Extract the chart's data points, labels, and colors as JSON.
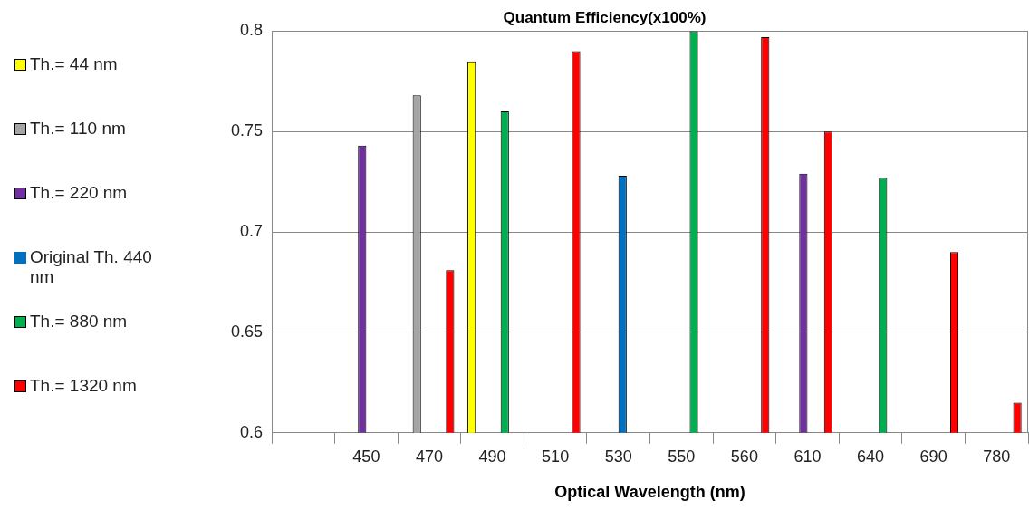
{
  "chart_data": {
    "type": "bar",
    "title": "Quantum Efficiency(x100%)",
    "xlabel": "Optical Wavelength (nm)",
    "categories": [
      null,
      "450",
      "470",
      "490",
      "510",
      "530",
      "550",
      "560",
      "610",
      "640",
      "690",
      "780"
    ],
    "series": [
      {
        "name": "Th.= 44 nm",
        "color": "#ffff00",
        "values": [
          null,
          null,
          null,
          0.785,
          null,
          null,
          null,
          null,
          null,
          null,
          null,
          null
        ]
      },
      {
        "name": "Th.= 110 nm",
        "color": "#a5a5a5",
        "values": [
          null,
          null,
          0.768,
          null,
          null,
          null,
          null,
          null,
          null,
          null,
          null,
          null
        ]
      },
      {
        "name": "Th.= 220 nm",
        "color": "#7030a0",
        "values": [
          null,
          0.743,
          null,
          null,
          null,
          null,
          null,
          null,
          0.729,
          null,
          null,
          null
        ]
      },
      {
        "name": "Original Th. 440 nm",
        "color": "#0070c0",
        "values": [
          null,
          null,
          null,
          null,
          null,
          0.728,
          null,
          null,
          null,
          null,
          null,
          null
        ]
      },
      {
        "name": "Th.= 880 nm",
        "color": "#00b050",
        "values": [
          null,
          null,
          null,
          0.76,
          null,
          null,
          0.8,
          null,
          null,
          0.727,
          null,
          null
        ]
      },
      {
        "name": "Th.= 1320 nm",
        "color": "#ff0000",
        "values": [
          null,
          null,
          0.681,
          null,
          0.79,
          null,
          null,
          0.797,
          0.75,
          null,
          0.69,
          0.615
        ]
      }
    ],
    "ylim": [
      0.6,
      0.8
    ],
    "yticks": [
      0.6,
      0.65,
      0.7,
      0.75,
      0.8
    ],
    "grid": "y",
    "legend": "left"
  }
}
